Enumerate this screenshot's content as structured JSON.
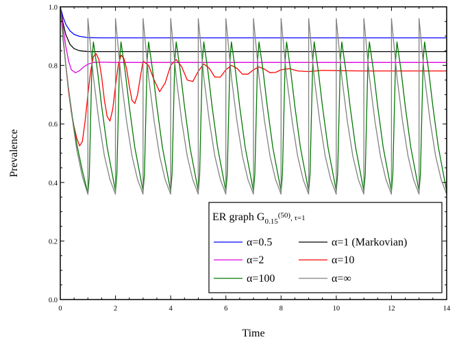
{
  "chart_data": {
    "type": "line",
    "xlabel": "Time",
    "ylabel": "Prevalence",
    "xlim": [
      0,
      14
    ],
    "ylim": [
      0,
      1.0
    ],
    "x_ticks": [
      "0",
      "2",
      "4",
      "6",
      "8",
      "10",
      "12",
      "14"
    ],
    "y_ticks": [
      "0.0",
      "0.2",
      "0.4",
      "0.6",
      "0.8",
      "1.0"
    ],
    "x_tick_values": [
      0,
      2,
      4,
      6,
      8,
      10,
      12,
      14
    ],
    "y_tick_values": [
      0,
      0.2,
      0.4,
      0.6,
      0.8,
      1.0
    ],
    "grid": false,
    "legend": {
      "placement": "bottom-right",
      "title": {
        "main": "ER graph G",
        "sub": "0.15",
        "sup": "(50)",
        "suffix": ", τ=1"
      }
    },
    "series": [
      {
        "name": "α=0.5",
        "color": "#0000ff",
        "x": [
          0,
          0.1,
          0.2,
          0.35,
          0.5,
          0.7,
          1.0,
          1.5,
          2.0,
          3.0,
          6.0,
          10.0,
          14.0
        ],
        "y": [
          1.0,
          0.965,
          0.94,
          0.918,
          0.906,
          0.899,
          0.895,
          0.894,
          0.894,
          0.894,
          0.894,
          0.894,
          0.894
        ]
      },
      {
        "name": "α=1 (Markovian)",
        "color": "#000000",
        "x": [
          0,
          0.1,
          0.2,
          0.35,
          0.5,
          0.7,
          1.0,
          1.5,
          2.0,
          3.0,
          6.0,
          10.0,
          14.0
        ],
        "y": [
          1.0,
          0.945,
          0.905,
          0.872,
          0.857,
          0.85,
          0.847,
          0.847,
          0.847,
          0.847,
          0.847,
          0.847,
          0.847
        ]
      },
      {
        "name": "α=2",
        "color": "#dd00dd",
        "x": [
          0,
          0.1,
          0.2,
          0.3,
          0.4,
          0.55,
          0.7,
          0.85,
          1.0,
          1.2,
          1.5,
          2.0,
          3.0,
          6.0,
          10.0,
          14.0
        ],
        "y": [
          1.0,
          0.93,
          0.865,
          0.815,
          0.785,
          0.775,
          0.782,
          0.795,
          0.804,
          0.81,
          0.811,
          0.81,
          0.81,
          0.81,
          0.81,
          0.81
        ]
      },
      {
        "name": "α=10",
        "color": "#ff0000",
        "x": [
          0,
          0.1,
          0.2,
          0.3,
          0.4,
          0.5,
          0.6,
          0.7,
          0.8,
          0.9,
          1.0,
          1.1,
          1.2,
          1.3,
          1.4,
          1.5,
          1.6,
          1.7,
          1.8,
          1.9,
          2.0,
          2.1,
          2.2,
          2.3,
          2.4,
          2.5,
          2.6,
          2.7,
          2.8,
          2.9,
          3.0,
          3.2,
          3.4,
          3.6,
          3.8,
          4.0,
          4.2,
          4.4,
          4.6,
          4.8,
          5.0,
          5.2,
          5.4,
          5.6,
          5.8,
          6.0,
          6.2,
          6.4,
          6.6,
          6.8,
          7.0,
          7.2,
          7.4,
          7.6,
          7.8,
          8.0,
          8.3,
          8.6,
          9.0,
          9.5,
          10.0,
          11.0,
          12.0,
          13.0,
          14.0
        ],
        "y": [
          1.0,
          0.9,
          0.8,
          0.71,
          0.64,
          0.59,
          0.55,
          0.525,
          0.54,
          0.61,
          0.7,
          0.78,
          0.83,
          0.84,
          0.82,
          0.76,
          0.68,
          0.625,
          0.61,
          0.65,
          0.73,
          0.8,
          0.835,
          0.825,
          0.79,
          0.73,
          0.68,
          0.67,
          0.7,
          0.76,
          0.815,
          0.8,
          0.75,
          0.71,
          0.74,
          0.8,
          0.82,
          0.795,
          0.75,
          0.745,
          0.78,
          0.805,
          0.79,
          0.76,
          0.76,
          0.785,
          0.8,
          0.79,
          0.77,
          0.77,
          0.785,
          0.795,
          0.787,
          0.775,
          0.776,
          0.785,
          0.789,
          0.781,
          0.779,
          0.783,
          0.782,
          0.781,
          0.781,
          0.781,
          0.781
        ]
      },
      {
        "name": "α=100",
        "color": "#007700",
        "x": [
          0,
          0.1,
          0.2,
          0.3,
          0.45,
          0.6,
          0.8,
          0.98,
          1.0,
          1.05,
          1.1,
          1.15,
          1.2,
          1.35,
          1.5,
          1.7,
          1.98,
          2.0,
          2.05,
          2.1,
          2.15,
          2.2,
          2.35,
          2.5,
          2.7,
          2.98,
          3.0,
          3.05,
          3.1,
          3.15,
          3.2,
          3.35,
          3.5,
          3.7,
          3.98,
          4.0,
          4.05,
          4.1,
          4.15,
          4.2,
          4.35,
          4.5,
          4.7,
          4.98,
          5.0,
          5.05,
          5.1,
          5.15,
          5.2,
          5.35,
          5.5,
          5.7,
          5.98,
          6.0,
          6.05,
          6.1,
          6.15,
          6.2,
          6.35,
          6.5,
          6.7,
          6.98,
          7.0,
          7.05,
          7.1,
          7.15,
          7.2,
          7.35,
          7.5,
          7.7,
          7.98,
          8.0,
          8.05,
          8.1,
          8.15,
          8.2,
          8.35,
          8.5,
          8.7,
          8.98,
          9.0,
          9.05,
          9.1,
          9.15,
          9.2,
          9.35,
          9.5,
          9.7,
          9.98,
          10.0,
          10.05,
          10.1,
          10.15,
          10.2,
          10.35,
          10.5,
          10.7,
          10.98,
          11.0,
          11.05,
          11.1,
          11.15,
          11.2,
          11.35,
          11.5,
          11.7,
          11.98,
          12.0,
          12.05,
          12.1,
          12.15,
          12.2,
          12.35,
          12.5,
          12.7,
          12.98,
          13.0,
          13.05,
          13.1,
          13.15,
          13.2,
          13.35,
          13.5,
          13.7,
          13.98,
          14.0
        ],
        "y": [
          1.0,
          0.89,
          0.8,
          0.72,
          0.615,
          0.53,
          0.44,
          0.37,
          0.36,
          0.42,
          0.62,
          0.82,
          0.88,
          0.78,
          0.66,
          0.52,
          0.38,
          0.37,
          0.43,
          0.63,
          0.82,
          0.88,
          0.78,
          0.66,
          0.52,
          0.38,
          0.37,
          0.43,
          0.63,
          0.82,
          0.88,
          0.78,
          0.66,
          0.52,
          0.38,
          0.37,
          0.43,
          0.63,
          0.82,
          0.88,
          0.78,
          0.66,
          0.52,
          0.38,
          0.37,
          0.43,
          0.63,
          0.82,
          0.88,
          0.78,
          0.66,
          0.52,
          0.38,
          0.37,
          0.43,
          0.63,
          0.82,
          0.88,
          0.78,
          0.66,
          0.52,
          0.38,
          0.37,
          0.43,
          0.63,
          0.82,
          0.88,
          0.78,
          0.66,
          0.52,
          0.38,
          0.37,
          0.43,
          0.63,
          0.82,
          0.88,
          0.78,
          0.66,
          0.52,
          0.38,
          0.37,
          0.43,
          0.63,
          0.82,
          0.88,
          0.78,
          0.66,
          0.52,
          0.38,
          0.37,
          0.43,
          0.63,
          0.82,
          0.88,
          0.78,
          0.66,
          0.52,
          0.38,
          0.37,
          0.43,
          0.63,
          0.82,
          0.88,
          0.78,
          0.66,
          0.52,
          0.38,
          0.37,
          0.43,
          0.63,
          0.82,
          0.88,
          0.78,
          0.66,
          0.52,
          0.38,
          0.37,
          0.43,
          0.63,
          0.82,
          0.88,
          0.78,
          0.66,
          0.52,
          0.38,
          0.37
        ]
      },
      {
        "name": "α=∞",
        "color": "#808080",
        "x": [
          0,
          0.2,
          0.4,
          0.6,
          0.8,
          0.999,
          1.0,
          1.2,
          1.4,
          1.6,
          1.8,
          1.999,
          2.0,
          2.2,
          2.4,
          2.6,
          2.8,
          2.999,
          3.0,
          3.2,
          3.4,
          3.6,
          3.8,
          3.999,
          4.0,
          4.2,
          4.4,
          4.6,
          4.8,
          4.999,
          5.0,
          5.2,
          5.4,
          5.6,
          5.8,
          5.999,
          6.0,
          6.2,
          6.4,
          6.6,
          6.8,
          6.999,
          7.0,
          7.2,
          7.4,
          7.6,
          7.8,
          7.999,
          8.0,
          8.2,
          8.4,
          8.6,
          8.8,
          8.999,
          9.0,
          9.2,
          9.4,
          9.6,
          9.8,
          9.999,
          10.0,
          10.2,
          10.4,
          10.6,
          10.8,
          10.999,
          11.0,
          11.2,
          11.4,
          11.6,
          11.8,
          11.999,
          12.0,
          12.2,
          12.4,
          12.6,
          12.8,
          12.999,
          13.0,
          13.2,
          13.4,
          13.6,
          13.8,
          13.999,
          14.0
        ],
        "y": [
          1.0,
          0.8,
          0.64,
          0.51,
          0.42,
          0.36,
          0.96,
          0.76,
          0.61,
          0.49,
          0.41,
          0.36,
          0.96,
          0.76,
          0.61,
          0.49,
          0.41,
          0.36,
          0.96,
          0.76,
          0.61,
          0.49,
          0.41,
          0.36,
          0.96,
          0.76,
          0.61,
          0.49,
          0.41,
          0.36,
          0.96,
          0.76,
          0.61,
          0.49,
          0.41,
          0.36,
          0.96,
          0.76,
          0.61,
          0.49,
          0.41,
          0.36,
          0.96,
          0.76,
          0.61,
          0.49,
          0.41,
          0.36,
          0.96,
          0.76,
          0.61,
          0.49,
          0.41,
          0.36,
          0.96,
          0.76,
          0.61,
          0.49,
          0.41,
          0.36,
          0.96,
          0.76,
          0.61,
          0.49,
          0.41,
          0.36,
          0.96,
          0.76,
          0.61,
          0.49,
          0.41,
          0.36,
          0.96,
          0.76,
          0.61,
          0.49,
          0.41,
          0.36,
          0.96,
          0.76,
          0.61,
          0.49,
          0.41,
          0.36,
          0.96
        ]
      }
    ]
  }
}
